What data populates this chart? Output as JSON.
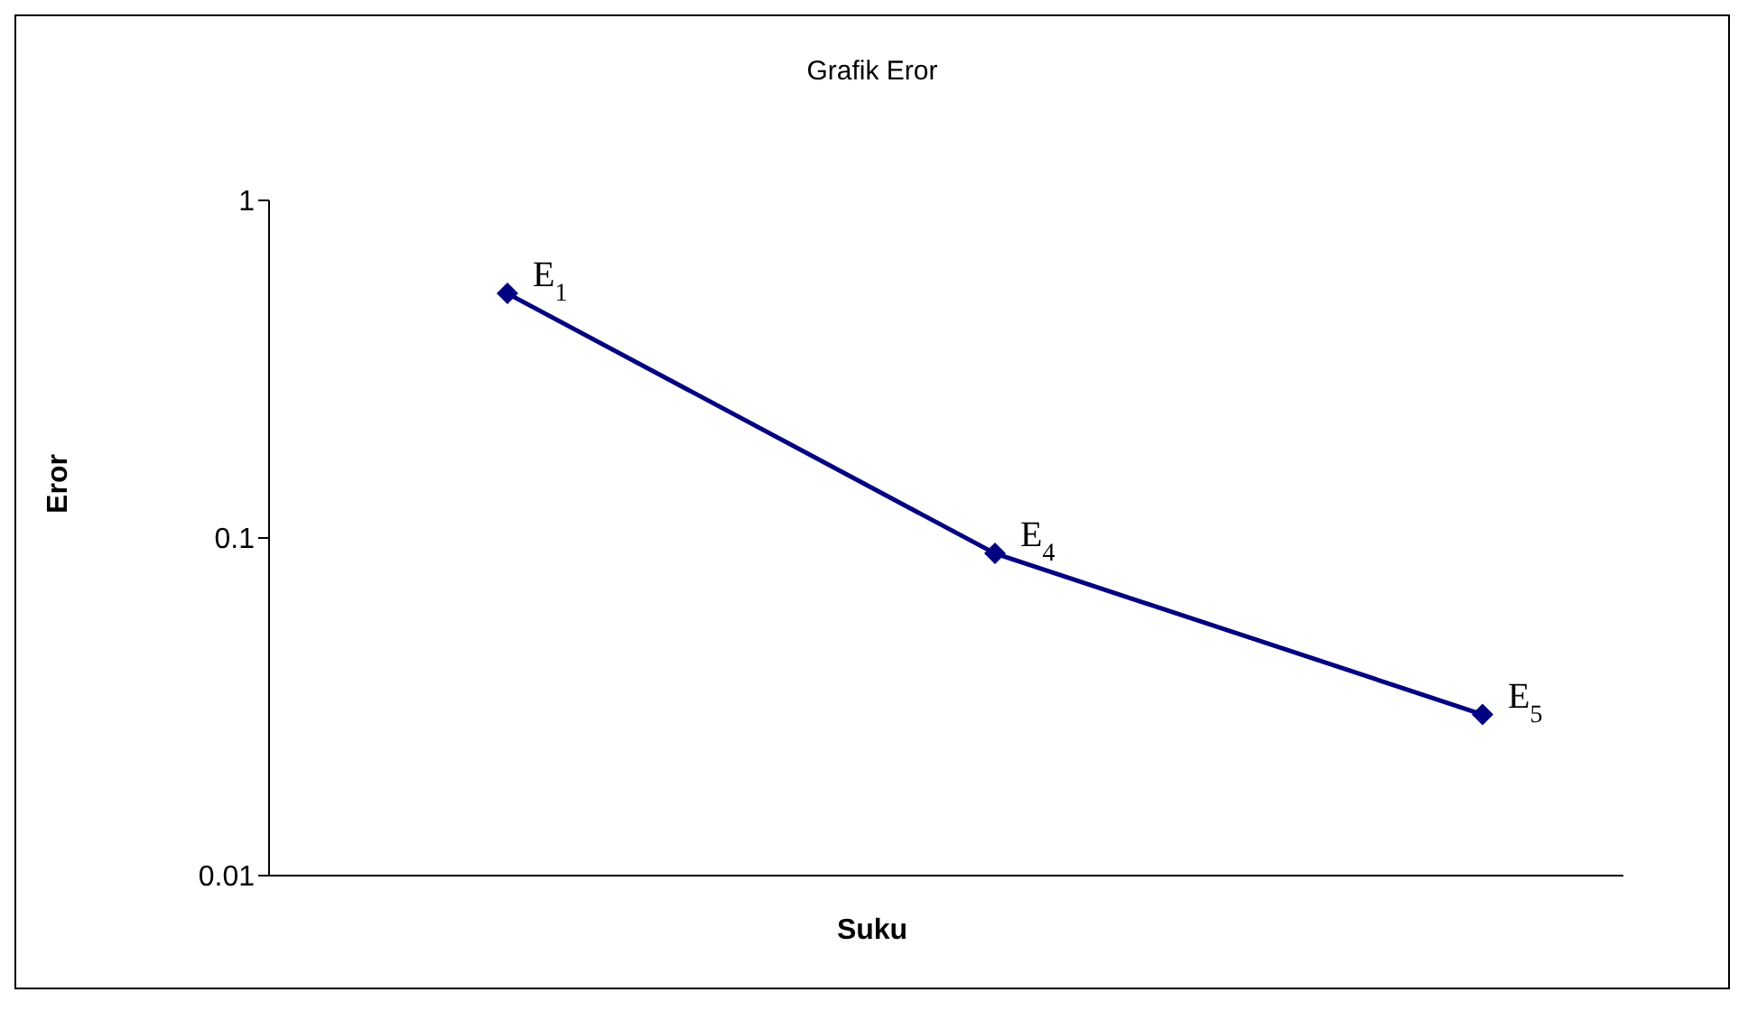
{
  "chart_data": {
    "type": "line",
    "title": "Grafik Eror",
    "xlabel": "Suku",
    "ylabel": "Eror",
    "categories": [
      null,
      null,
      null
    ],
    "series": [
      {
        "color": "#000080",
        "values": [
          0.53,
          0.09,
          0.03
        ]
      }
    ],
    "annotations": [
      "E$_{1}$",
      "E$_{4}$",
      "E$_{5}$"
    ],
    "ylim": [
      0.01,
      1
    ],
    "yticks": [
      0.01,
      0.1,
      1
    ],
    "log": true,
    "grid": false,
    "legend": false,
    "marker": "diamond",
    "line_style": "solid"
  }
}
